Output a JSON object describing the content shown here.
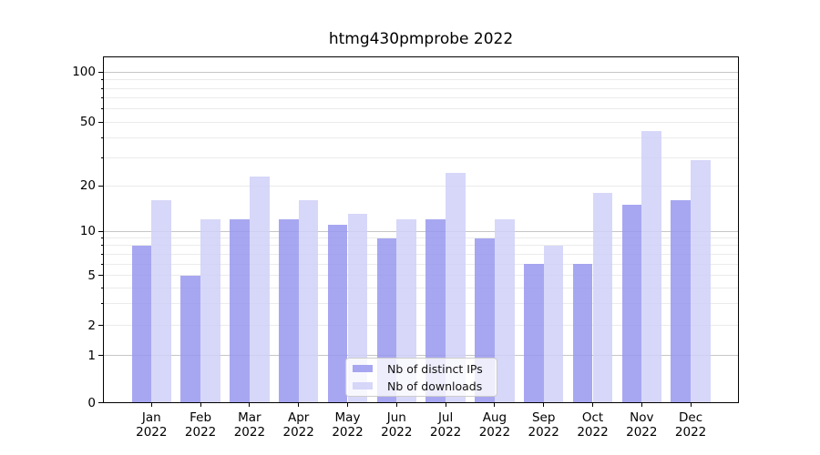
{
  "title": "htmg430pmprobe 2022",
  "chart_data": {
    "type": "bar",
    "title": "htmg430pmprobe 2022",
    "categories": [
      "Jan 2022",
      "Feb 2022",
      "Mar 2022",
      "Apr 2022",
      "May 2022",
      "Jun 2022",
      "Jul 2022",
      "Aug 2022",
      "Sep 2022",
      "Oct 2022",
      "Nov 2022",
      "Dec 2022"
    ],
    "series": [
      {
        "name": "Nb of distinct IPs",
        "color": "rgba(152,152,238,0.85)",
        "values": [
          8,
          5,
          12,
          12,
          11,
          9,
          12,
          9,
          6,
          6,
          15,
          16
        ]
      },
      {
        "name": "Nb of downloads",
        "color": "rgba(208,208,248,0.85)",
        "values": [
          16,
          12,
          23,
          16,
          13,
          12,
          24,
          12,
          8,
          18,
          44,
          29
        ]
      }
    ],
    "xlabel": "",
    "ylabel": "",
    "yscale": "log-like with zero baseline",
    "yticks": [
      100,
      50,
      20,
      10,
      5,
      2,
      1,
      0
    ],
    "ylim": [
      0,
      123
    ],
    "grid": "horizontal major at 1,10,100 and minor at 2-9 per decade",
    "legend_position": "lower center inside plot"
  },
  "colors": {
    "background": "#ffffff",
    "axis": "#000000",
    "grid_major": "#c6c6c6",
    "grid_minor": "#ebebeb",
    "legend_border": "#cccccc",
    "bar_distinct_ips": "rgba(152,152,238,0.85)",
    "bar_downloads": "rgba(208,208,248,0.85)"
  }
}
